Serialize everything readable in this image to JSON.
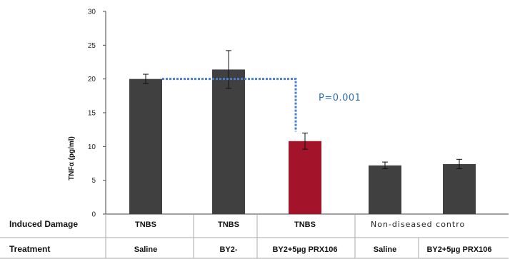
{
  "chart_data": {
    "type": "bar",
    "ylabel": "TNFα (pg/ml)",
    "ylim": [
      0,
      30
    ],
    "yticks": [
      "0",
      "5",
      "10",
      "15",
      "20",
      "25",
      "30"
    ],
    "grid": false,
    "bars": [
      {
        "damage": "TNBS",
        "treatment": "Saline",
        "value": 20.0,
        "error": 0.7,
        "color": "#404040"
      },
      {
        "damage": "TNBS",
        "treatment": "BY2-",
        "value": 21.4,
        "error": 2.8,
        "color": "#404040"
      },
      {
        "damage": "TNBS",
        "treatment": "BY2+5µg PRX106",
        "value": 10.8,
        "error": 1.2,
        "color": "#a3142b"
      },
      {
        "damage": "",
        "treatment": "Saline",
        "value": 7.2,
        "error": 0.5,
        "color": "#404040"
      },
      {
        "damage": "",
        "treatment": "BY2+5µg PRX106",
        "value": 7.4,
        "error": 0.7,
        "color": "#404040"
      }
    ],
    "group_label": "Non-diseased contro",
    "annotation": {
      "text": "P=0.001",
      "from_bar": 0,
      "to_bar": 2,
      "line_color": "#4a7fd0"
    }
  },
  "table": {
    "damage_header": "Induced Damage",
    "treatment_header": "Treatment"
  },
  "colors": {
    "dark_bar": "#404040",
    "highlight_bar": "#a3142b",
    "p_text": "#2d6fb3"
  }
}
